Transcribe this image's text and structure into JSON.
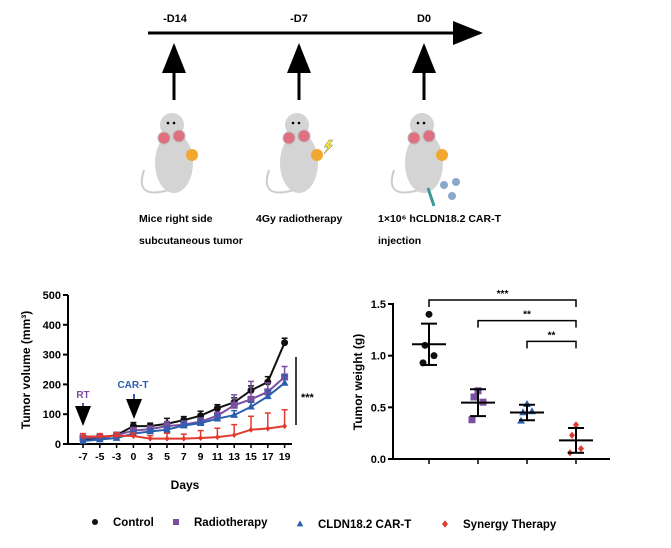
{
  "timeline": {
    "points": [
      {
        "label": "-D14",
        "desc1": "Mice right side",
        "desc2": "subcutaneous tumor"
      },
      {
        "label": "-D7",
        "desc1": "4Gy radiotherapy",
        "desc2": ""
      },
      {
        "label": "D0",
        "desc1": "1×10⁶ hCLDN18.2 CAR-T",
        "desc2": "injection"
      }
    ]
  },
  "legend": [
    "Control",
    "Radiotherapy",
    "CLDN18.2 CAR-T",
    "Synergy Therapy"
  ],
  "colors": {
    "Control": "#111111",
    "Radiotherapy": "#7b4fa0",
    "CLDN18.2 CAR-T": "#2a5fb0",
    "Synergy Therapy": "#e23b2e"
  },
  "chart_data": [
    {
      "type": "line",
      "xlabel": "Days",
      "ylabel": "Tumor volume (mm³)",
      "ylim": [
        0,
        500
      ],
      "yticks": [
        0,
        100,
        200,
        300,
        400,
        500
      ],
      "x": [
        -7,
        -5,
        -3,
        0,
        3,
        5,
        7,
        9,
        11,
        13,
        15,
        17,
        19
      ],
      "annotations": {
        "rt": "RT",
        "cart": "CAR-T",
        "significance": "***"
      },
      "series": [
        {
          "name": "Control",
          "values": [
            15,
            20,
            30,
            60,
            60,
            68,
            80,
            95,
            120,
            140,
            180,
            208,
            340
          ],
          "err": [
            8,
            8,
            8,
            12,
            10,
            18,
            12,
            15,
            12,
            15,
            15,
            18,
            15
          ]
        },
        {
          "name": "Radiotherapy",
          "values": [
            20,
            22,
            30,
            45,
            50,
            60,
            65,
            75,
            95,
            130,
            150,
            175,
            225
          ],
          "err": [
            8,
            8,
            8,
            10,
            10,
            15,
            12,
            12,
            12,
            35,
            60,
            30,
            35
          ]
        },
        {
          "name": "CLDN18.2 CAR-T",
          "values": [
            10,
            15,
            20,
            35,
            42,
            48,
            62,
            70,
            85,
            97,
            125,
            160,
            205
          ],
          "err": [
            6,
            6,
            6,
            8,
            8,
            10,
            10,
            12,
            12,
            15,
            15,
            20,
            25
          ]
        },
        {
          "name": "Synergy Therapy",
          "values": [
            25,
            25,
            28,
            27,
            18,
            18,
            18,
            20,
            23,
            30,
            48,
            52,
            60
          ],
          "err": [
            10,
            10,
            10,
            10,
            10,
            18,
            15,
            25,
            30,
            35,
            45,
            52,
            55
          ]
        }
      ]
    },
    {
      "type": "scatter",
      "xlabel": "",
      "ylabel": "Tumor weight (g)",
      "ylim": [
        0,
        1.5
      ],
      "yticks": [
        "0.0",
        "0.5",
        "1.0",
        "1.5"
      ],
      "groups": [
        {
          "name": "Control",
          "points": [
            1.4,
            1.1,
            1.0,
            0.93
          ],
          "mean": 1.11,
          "sd": 0.2
        },
        {
          "name": "Radiotherapy",
          "points": [
            0.66,
            0.6,
            0.55,
            0.38
          ],
          "mean": 0.545,
          "sd": 0.13
        },
        {
          "name": "CLDN18.2 CAR-T",
          "points": [
            0.53,
            0.45,
            0.46,
            0.37
          ],
          "mean": 0.45,
          "sd": 0.075
        },
        {
          "name": "Synergy Therapy",
          "points": [
            0.33,
            0.23,
            0.1,
            0.06
          ],
          "mean": 0.18,
          "sd": 0.12
        }
      ],
      "comparisons": [
        {
          "from": 0,
          "to": 3,
          "level": 1.5,
          "label": "***"
        },
        {
          "from": 1,
          "to": 3,
          "level": 1.3,
          "label": "**"
        },
        {
          "from": 2,
          "to": 3,
          "level": 1.1,
          "label": "**"
        }
      ]
    }
  ]
}
